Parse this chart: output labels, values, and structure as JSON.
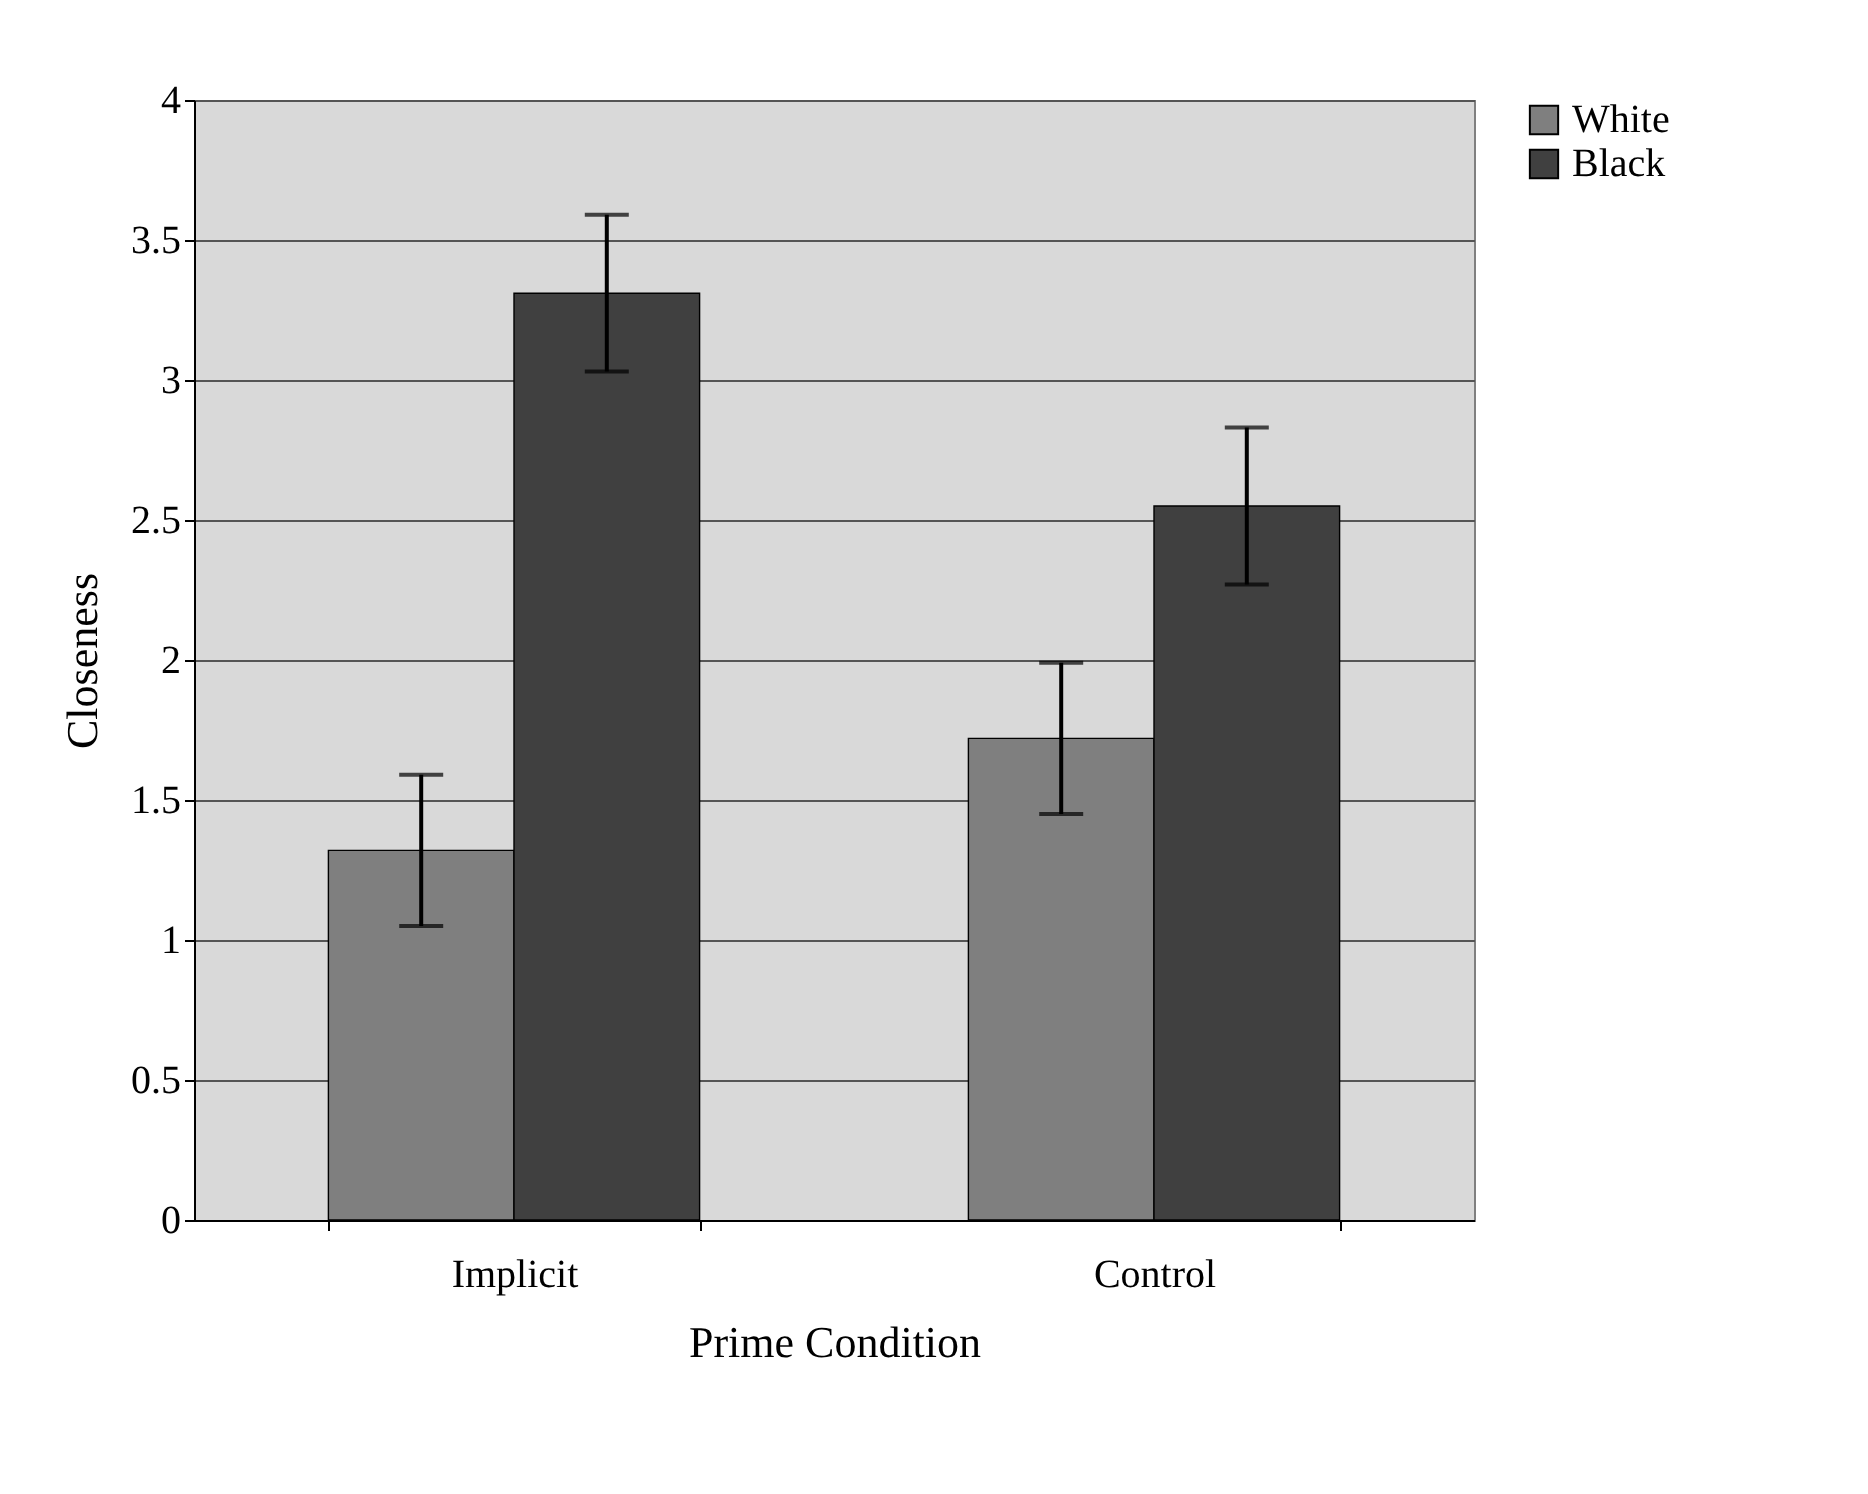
{
  "chart_data": {
    "type": "bar",
    "xlabel": "Prime Condition",
    "ylabel": "Closeness",
    "categories": [
      "Implicit",
      "Control"
    ],
    "series": [
      {
        "name": "White",
        "color": "#7f7f7f",
        "values": [
          1.32,
          1.72
        ],
        "errors": [
          0.27,
          0.27
        ]
      },
      {
        "name": "Black",
        "color": "#404040",
        "values": [
          3.31,
          2.55
        ],
        "errors": [
          0.28,
          0.28
        ]
      }
    ],
    "ylim": [
      0,
      4
    ],
    "yticks": [
      0,
      0.5,
      1,
      1.5,
      2,
      2.5,
      3,
      3.5,
      4
    ],
    "grid": "y",
    "legend": "right"
  }
}
